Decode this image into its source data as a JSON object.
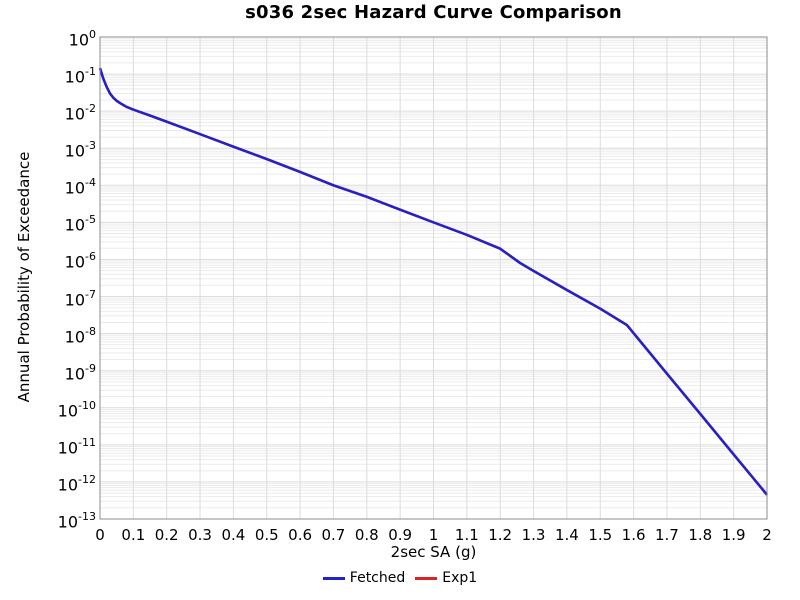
{
  "title": "s036 2sec Hazard Curve Comparison",
  "colors": {
    "fetched": "#2222cc",
    "exp1": "#dd2222",
    "grid_minor": "#ebebeb",
    "grid_major": "#dcdcdc",
    "plot_border": "#8c8c8c",
    "background": "#ffffff"
  },
  "legend": {
    "items": [
      {
        "label": "Fetched",
        "color": "#2222cc"
      },
      {
        "label": "Exp1",
        "color": "#dd2222"
      }
    ]
  },
  "chart_data": {
    "type": "line",
    "title": "s036 2sec Hazard Curve Comparison",
    "xlabel": "2sec SA (g)",
    "ylabel": "Annual Probability of Exceedance",
    "xlim": [
      0,
      2
    ],
    "y_log10_lim": [
      -13,
      0
    ],
    "yscale": "log",
    "grid": true,
    "legend_position": "bottom-center",
    "x_tick_step": 0.1,
    "x_tick_labels": [
      "0",
      "0.1",
      "0.2",
      "0.3",
      "0.4",
      "0.5",
      "0.6",
      "0.7",
      "0.8",
      "0.9",
      "1",
      "1.1",
      "1.2",
      "1.3",
      "1.4",
      "1.5",
      "1.6",
      "1.7",
      "1.8",
      "1.9",
      "2"
    ],
    "y_tick_exponents": [
      0,
      -1,
      -2,
      -3,
      -4,
      -5,
      -6,
      -7,
      -8,
      -9,
      -10,
      -11,
      -12,
      -13
    ],
    "series": [
      {
        "name": "Fetched",
        "color": "#2222cc",
        "x": [
          0,
          0.01,
          0.02,
          0.03,
          0.04,
          0.05,
          0.06,
          0.08,
          0.1,
          0.15,
          0.2,
          0.3,
          0.4,
          0.5,
          0.6,
          0.7,
          0.8,
          0.9,
          1.0,
          1.1,
          1.2,
          1.26,
          1.3,
          1.4,
          1.5,
          1.58,
          1.7,
          1.8,
          1.9,
          2.0
        ],
        "y": [
          0.145,
          0.075,
          0.045,
          0.03,
          0.023,
          0.019,
          0.0165,
          0.013,
          0.011,
          0.0076,
          0.0052,
          0.0024,
          0.0011,
          0.00051,
          0.00023,
          0.0001,
          4.9e-05,
          2.2e-05,
          1e-05,
          4.6e-06,
          1.95e-06,
          8e-07,
          4.9e-07,
          1.5e-07,
          4.7e-08,
          1.7e-08,
          8.3e-10,
          6.8e-11,
          5.5e-12,
          4.5e-13
        ]
      },
      {
        "name": "Exp1",
        "color": "#dd2222",
        "note": "curve coincides with Fetched and is hidden beneath it",
        "x": [
          0,
          0.01,
          0.02,
          0.03,
          0.04,
          0.05,
          0.06,
          0.08,
          0.1,
          0.15,
          0.2,
          0.3,
          0.4,
          0.5,
          0.6,
          0.7,
          0.8,
          0.9,
          1.0,
          1.1,
          1.2,
          1.26,
          1.3,
          1.4,
          1.5,
          1.58,
          1.7,
          1.8,
          1.9,
          2.0
        ],
        "y": [
          0.145,
          0.075,
          0.045,
          0.03,
          0.023,
          0.019,
          0.0165,
          0.013,
          0.011,
          0.0076,
          0.0052,
          0.0024,
          0.0011,
          0.00051,
          0.00023,
          0.0001,
          4.9e-05,
          2.2e-05,
          1e-05,
          4.6e-06,
          1.95e-06,
          8e-07,
          4.9e-07,
          1.5e-07,
          4.7e-08,
          1.7e-08,
          8.3e-10,
          6.8e-11,
          5.5e-12,
          4.5e-13
        ]
      }
    ]
  }
}
